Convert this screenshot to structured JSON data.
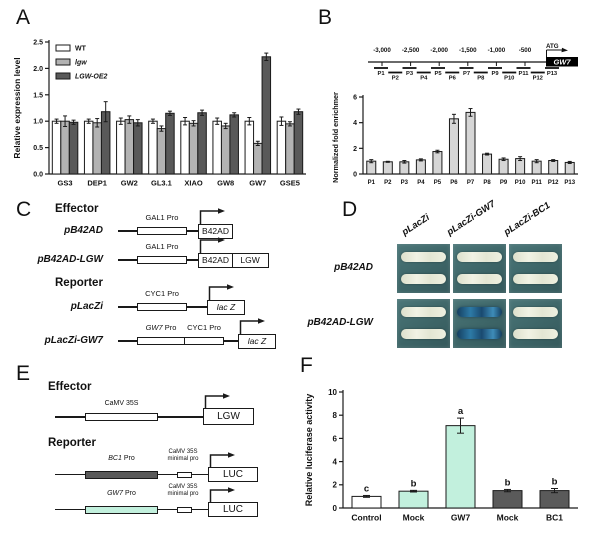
{
  "colors": {
    "mint": "#c2f0dd",
    "dark_gray": "#5a5a5a",
    "light_gray": "#b3b3b3",
    "bar_gray": "#d6d6d6",
    "plate_teal": "#3f6769",
    "streak_white": "#e9ebdc",
    "streak_blue": "#1a4f78"
  },
  "panels": {
    "A": {
      "label": "A"
    },
    "B": {
      "label": "B",
      "map": {
        "position_labels": [
          "-3,000",
          "-2,500",
          "-2,000",
          "-1,500",
          "-1,000",
          "-500"
        ],
        "start_codon": "ATG",
        "gene_label": "GW7",
        "fragments": [
          "P1",
          "P2",
          "P3",
          "P4",
          "P5",
          "P6",
          "P7",
          "P8",
          "P9",
          "P10",
          "P11",
          "P12",
          "P13"
        ]
      }
    },
    "C": {
      "label": "C",
      "effector_heading": "Effector",
      "reporter_heading": "Reporter",
      "rows": [
        {
          "name": "pB42AD",
          "promoter1": "GAL1 Pro",
          "gene1": "B42AD"
        },
        {
          "name": "pB42AD-LGW",
          "promoter1": "GAL1 Pro",
          "gene1": "B42AD",
          "gene2": "LGW"
        },
        {
          "name": "pLacZi",
          "promoter1": "CYC1 Pro",
          "gene1": "lac Z"
        },
        {
          "name": "pLacZi-GW7",
          "promoter1_gene": "GW7",
          "promoter1_rest": " Pro",
          "promoter2": "CYC1 Pro",
          "gene1": "lac Z"
        }
      ]
    },
    "D": {
      "label": "D",
      "column_labels": [
        "pLacZi",
        "pLacZi-GW7",
        "pLacZi-BC1"
      ],
      "row_labels": [
        "pB42AD",
        "pB42AD-LGW"
      ],
      "plates": [
        [
          "white",
          "white",
          "white"
        ],
        [
          "white",
          "blue",
          "white"
        ]
      ]
    },
    "E": {
      "label": "E",
      "effector_heading": "Effector",
      "reporter_heading": "Reporter",
      "rows": [
        {
          "promoter": "CaMV 35S",
          "gene": "LGW"
        },
        {
          "promoter_gene": "BC1",
          "promoter_rest": " Pro",
          "minimal1": "CaMV 35S",
          "minimal2": "minimal pro",
          "gene": "LUC"
        },
        {
          "promoter_gene": "GW7",
          "promoter_rest": " Pro",
          "minimal1": "CaMV 35S",
          "minimal2": "minimal pro",
          "gene": "LUC"
        }
      ]
    },
    "F": {
      "label": "F"
    }
  },
  "chart_data": [
    {
      "id": "A",
      "type": "bar",
      "title": "",
      "ylabel": "Relative expression level",
      "ylim": [
        0,
        2.5
      ],
      "yticks": [
        "0.0",
        "0.5",
        "1.0",
        "1.5",
        "2.0",
        "2.5"
      ],
      "categories": [
        "GS3",
        "DEP1",
        "GW2",
        "GL3.1",
        "XIAO",
        "GW8",
        "GW7",
        "GSE5"
      ],
      "legend_position": "top-left",
      "series": [
        {
          "name": "WT",
          "italic": false,
          "color": "#ffffff",
          "values": [
            1.0,
            1.0,
            1.0,
            1.0,
            1.0,
            1.0,
            1.0,
            1.0
          ],
          "errors": [
            0.04,
            0.04,
            0.06,
            0.04,
            0.07,
            0.06,
            0.07,
            0.08
          ]
        },
        {
          "name": "lgw",
          "italic": true,
          "color": "#b3b3b3",
          "values": [
            1.0,
            0.97,
            1.03,
            0.86,
            0.96,
            0.91,
            0.58,
            0.95
          ],
          "errors": [
            0.1,
            0.08,
            0.07,
            0.05,
            0.05,
            0.05,
            0.04,
            0.04
          ]
        },
        {
          "name": "LGW-OE2",
          "italic": true,
          "color": "#595959",
          "values": [
            0.98,
            1.18,
            0.97,
            1.15,
            1.16,
            1.12,
            2.22,
            1.18
          ],
          "errors": [
            0.04,
            0.19,
            0.06,
            0.04,
            0.05,
            0.04,
            0.07,
            0.05
          ]
        }
      ]
    },
    {
      "id": "B",
      "type": "bar",
      "title": "",
      "ylabel": "Normalized fold enrichment",
      "ylim": [
        0,
        6
      ],
      "yticks": [
        "0",
        "2",
        "4",
        "6"
      ],
      "categories": [
        "P1",
        "P2",
        "P3",
        "P4",
        "P5",
        "P6",
        "P7",
        "P8",
        "P9",
        "P10",
        "P11",
        "P12",
        "P13"
      ],
      "series": [
        {
          "name": "enrichment",
          "color": "#d6d6d6",
          "values": [
            1.0,
            0.95,
            0.95,
            1.1,
            1.75,
            4.3,
            4.8,
            1.55,
            1.15,
            1.2,
            1.0,
            1.05,
            0.9
          ],
          "errors": [
            0.12,
            0.04,
            0.1,
            0.08,
            0.1,
            0.35,
            0.3,
            0.07,
            0.1,
            0.15,
            0.12,
            0.07,
            0.08
          ]
        }
      ]
    },
    {
      "id": "F",
      "type": "bar",
      "title": "",
      "ylabel": "Relative luciferase activity",
      "ylim": [
        0,
        10
      ],
      "yticks": [
        "0",
        "2",
        "4",
        "6",
        "8",
        "10"
      ],
      "categories": [
        "Control",
        "Mock",
        "GW7",
        "Mock",
        "BC1"
      ],
      "series": [
        {
          "name": "activity",
          "colors": [
            "#ffffff",
            "#c2f0dd",
            "#c2f0dd",
            "#5a5a5a",
            "#5a5a5a"
          ],
          "values": [
            1.0,
            1.45,
            7.1,
            1.5,
            1.5
          ],
          "errors": [
            0.08,
            0.07,
            0.65,
            0.1,
            0.18
          ],
          "letters": [
            "c",
            "b",
            "a",
            "b",
            "b"
          ]
        }
      ]
    }
  ]
}
